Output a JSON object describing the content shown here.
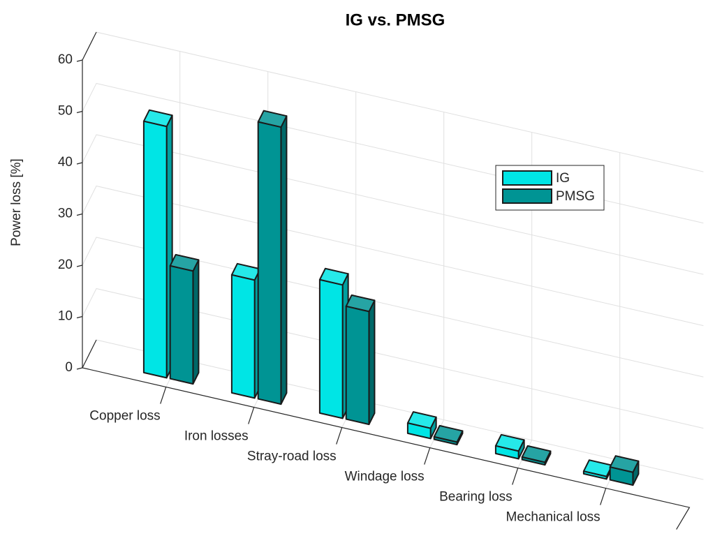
{
  "chart_data": {
    "type": "bar3d",
    "title": "IG vs. PMSG",
    "ylabel": "Power loss [%]",
    "categories": [
      "Copper loss",
      "Iron losses",
      "Stray-road loss",
      "Windage loss",
      "Bearing loss",
      "Mechanical loss"
    ],
    "series": [
      {
        "name": "IG",
        "color": "#00e5e5",
        "values": [
          49,
          23,
          26,
          2,
          1.5,
          0.5
        ]
      },
      {
        "name": "PMSG",
        "color": "#009494",
        "values": [
          22,
          54,
          22,
          0.5,
          0.5,
          2.5
        ]
      }
    ],
    "ylim": [
      0,
      60
    ],
    "yticks": [
      0,
      10,
      20,
      30,
      40,
      50,
      60
    ],
    "grid": true,
    "legend": "upper right"
  }
}
